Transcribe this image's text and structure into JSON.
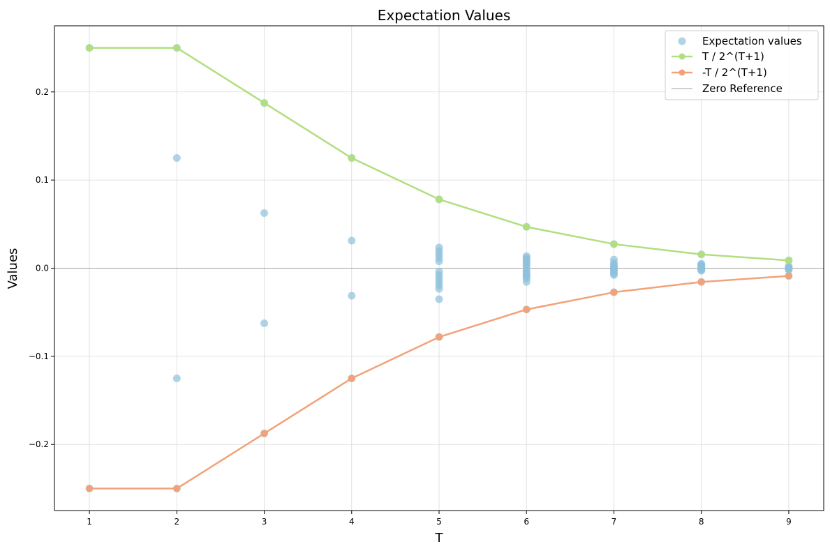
{
  "chart_data": {
    "type": "scatter",
    "title": "Expectation Values",
    "xlabel": "T",
    "ylabel": "Values",
    "xlim": [
      0.6,
      9.4
    ],
    "ylim": [
      -0.275,
      0.275
    ],
    "xticks": [
      1,
      2,
      3,
      4,
      5,
      6,
      7,
      8,
      9
    ],
    "yticks": [
      -0.2,
      -0.1,
      0.0,
      0.1,
      0.2
    ],
    "ytick_labels": [
      "−0.2",
      "−0.1",
      "0.0",
      "0.1",
      "0.2"
    ],
    "grid": true,
    "legend_position": "top-right",
    "scatter_series": {
      "name": "Expectation values",
      "color": "#8fc0dc",
      "points": [
        [
          1,
          0.25
        ],
        [
          1,
          -0.25
        ],
        [
          2,
          0.125
        ],
        [
          2,
          -0.125
        ],
        [
          2,
          0.25
        ],
        [
          2,
          -0.25
        ],
        [
          3,
          0.0625
        ],
        [
          3,
          -0.0625
        ],
        [
          3,
          0.1875
        ],
        [
          3,
          -0.1875
        ],
        [
          4,
          0.03125
        ],
        [
          4,
          -0.03125
        ],
        [
          4,
          0.125
        ],
        [
          4,
          -0.125
        ],
        [
          5,
          0.0234
        ],
        [
          5,
          0.0195
        ],
        [
          5,
          0.0156
        ],
        [
          5,
          0.0117
        ],
        [
          5,
          0.0078
        ],
        [
          5,
          -0.0039
        ],
        [
          5,
          -0.0078
        ],
        [
          5,
          -0.0117
        ],
        [
          5,
          -0.0156
        ],
        [
          5,
          -0.0195
        ],
        [
          5,
          -0.0234
        ],
        [
          5,
          -0.0352
        ],
        [
          5,
          0.078
        ],
        [
          5,
          -0.078
        ],
        [
          6,
          0.0137
        ],
        [
          6,
          0.0117
        ],
        [
          6,
          0.0098
        ],
        [
          6,
          0.0078
        ],
        [
          6,
          0.0059
        ],
        [
          6,
          0.0039
        ],
        [
          6,
          0.002
        ],
        [
          6,
          -0.002
        ],
        [
          6,
          -0.0039
        ],
        [
          6,
          -0.0059
        ],
        [
          6,
          -0.0078
        ],
        [
          6,
          -0.0098
        ],
        [
          6,
          -0.0117
        ],
        [
          6,
          -0.0156
        ],
        [
          6,
          0.0469
        ],
        [
          6,
          -0.0469
        ],
        [
          7,
          0.0098
        ],
        [
          7,
          0.0059
        ],
        [
          7,
          0.0039
        ],
        [
          7,
          0.002
        ],
        [
          7,
          0.001
        ],
        [
          7,
          -0.001
        ],
        [
          7,
          -0.002
        ],
        [
          7,
          -0.0039
        ],
        [
          7,
          -0.0059
        ],
        [
          7,
          -0.0078
        ],
        [
          7,
          0.0273
        ],
        [
          7,
          -0.0273
        ],
        [
          8,
          0.0049
        ],
        [
          8,
          0.0039
        ],
        [
          8,
          0.0029
        ],
        [
          8,
          0.002
        ],
        [
          8,
          0.001
        ],
        [
          8,
          0.0
        ],
        [
          8,
          -0.001
        ],
        [
          8,
          -0.002
        ],
        [
          8,
          -0.0029
        ],
        [
          8,
          0.0156
        ],
        [
          8,
          -0.0156
        ],
        [
          9,
          0.002
        ],
        [
          9,
          0.001
        ],
        [
          9,
          0.0
        ],
        [
          9,
          -0.001
        ],
        [
          9,
          -0.002
        ],
        [
          9,
          0.0088
        ],
        [
          9,
          -0.0088
        ]
      ]
    },
    "series": [
      {
        "name": "T / 2^(T+1)",
        "color": "#b1df7f",
        "x": [
          1,
          2,
          3,
          4,
          5,
          6,
          7,
          8,
          9
        ],
        "values": [
          0.25,
          0.25,
          0.1875,
          0.125,
          0.078125,
          0.046875,
          0.02734,
          0.015625,
          0.00879
        ]
      },
      {
        "name": "-T / 2^(T+1)",
        "color": "#f2a279",
        "x": [
          1,
          2,
          3,
          4,
          5,
          6,
          7,
          8,
          9
        ],
        "values": [
          -0.25,
          -0.25,
          -0.1875,
          -0.125,
          -0.078125,
          -0.046875,
          -0.02734,
          -0.015625,
          -0.00879
        ]
      }
    ],
    "reference_line": {
      "name": "Zero Reference",
      "y": 0,
      "color": "#a0a0a0"
    }
  }
}
